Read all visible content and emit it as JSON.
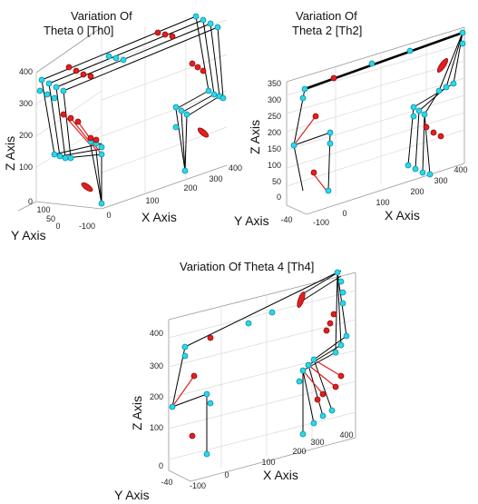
{
  "chart_data": [
    {
      "type": "scatter",
      "title_lines": [
        "Variation Of",
        "Theta 0 [Th0]"
      ],
      "xlabel": "X Axis",
      "ylabel": "Y Axis",
      "zlabel": "Z Axis",
      "xticks": [
        "-100",
        "0",
        "100",
        "200",
        "300",
        "400"
      ],
      "yticks": [
        "100",
        "50",
        "0"
      ],
      "zticks": [
        "0",
        "100",
        "200",
        "300",
        "400"
      ],
      "series": [
        {
          "marker_color": "#29d8ea"
        },
        {
          "marker_color": "#e41e1e"
        }
      ]
    },
    {
      "type": "scatter",
      "title_lines": [
        "Variation Of",
        "Theta 2 [Th2]"
      ],
      "xlabel": "X Axis",
      "ylabel": "Y Axis",
      "zlabel": "Z Axis",
      "xticks": [
        "-100",
        "0",
        "100",
        "200",
        "300",
        "400"
      ],
      "yticks": [
        "-40"
      ],
      "zticks": [
        "0",
        "50",
        "100",
        "150",
        "200",
        "250",
        "300",
        "350"
      ],
      "series": [
        {
          "marker_color": "#29d8ea"
        },
        {
          "marker_color": "#e41e1e"
        }
      ]
    },
    {
      "type": "scatter",
      "title_lines": [
        "Variation Of Theta 4 [Th4]"
      ],
      "xlabel": "X Axis",
      "ylabel": "Y Axis",
      "zlabel": "Z Axis",
      "xticks": [
        "-100",
        "0",
        "100",
        "200",
        "300",
        "400"
      ],
      "yticks": [
        "-40"
      ],
      "zticks": [
        "0",
        "100",
        "200",
        "300",
        "400"
      ],
      "series": [
        {
          "marker_color": "#29d8ea"
        },
        {
          "marker_color": "#e41e1e"
        }
      ]
    }
  ]
}
